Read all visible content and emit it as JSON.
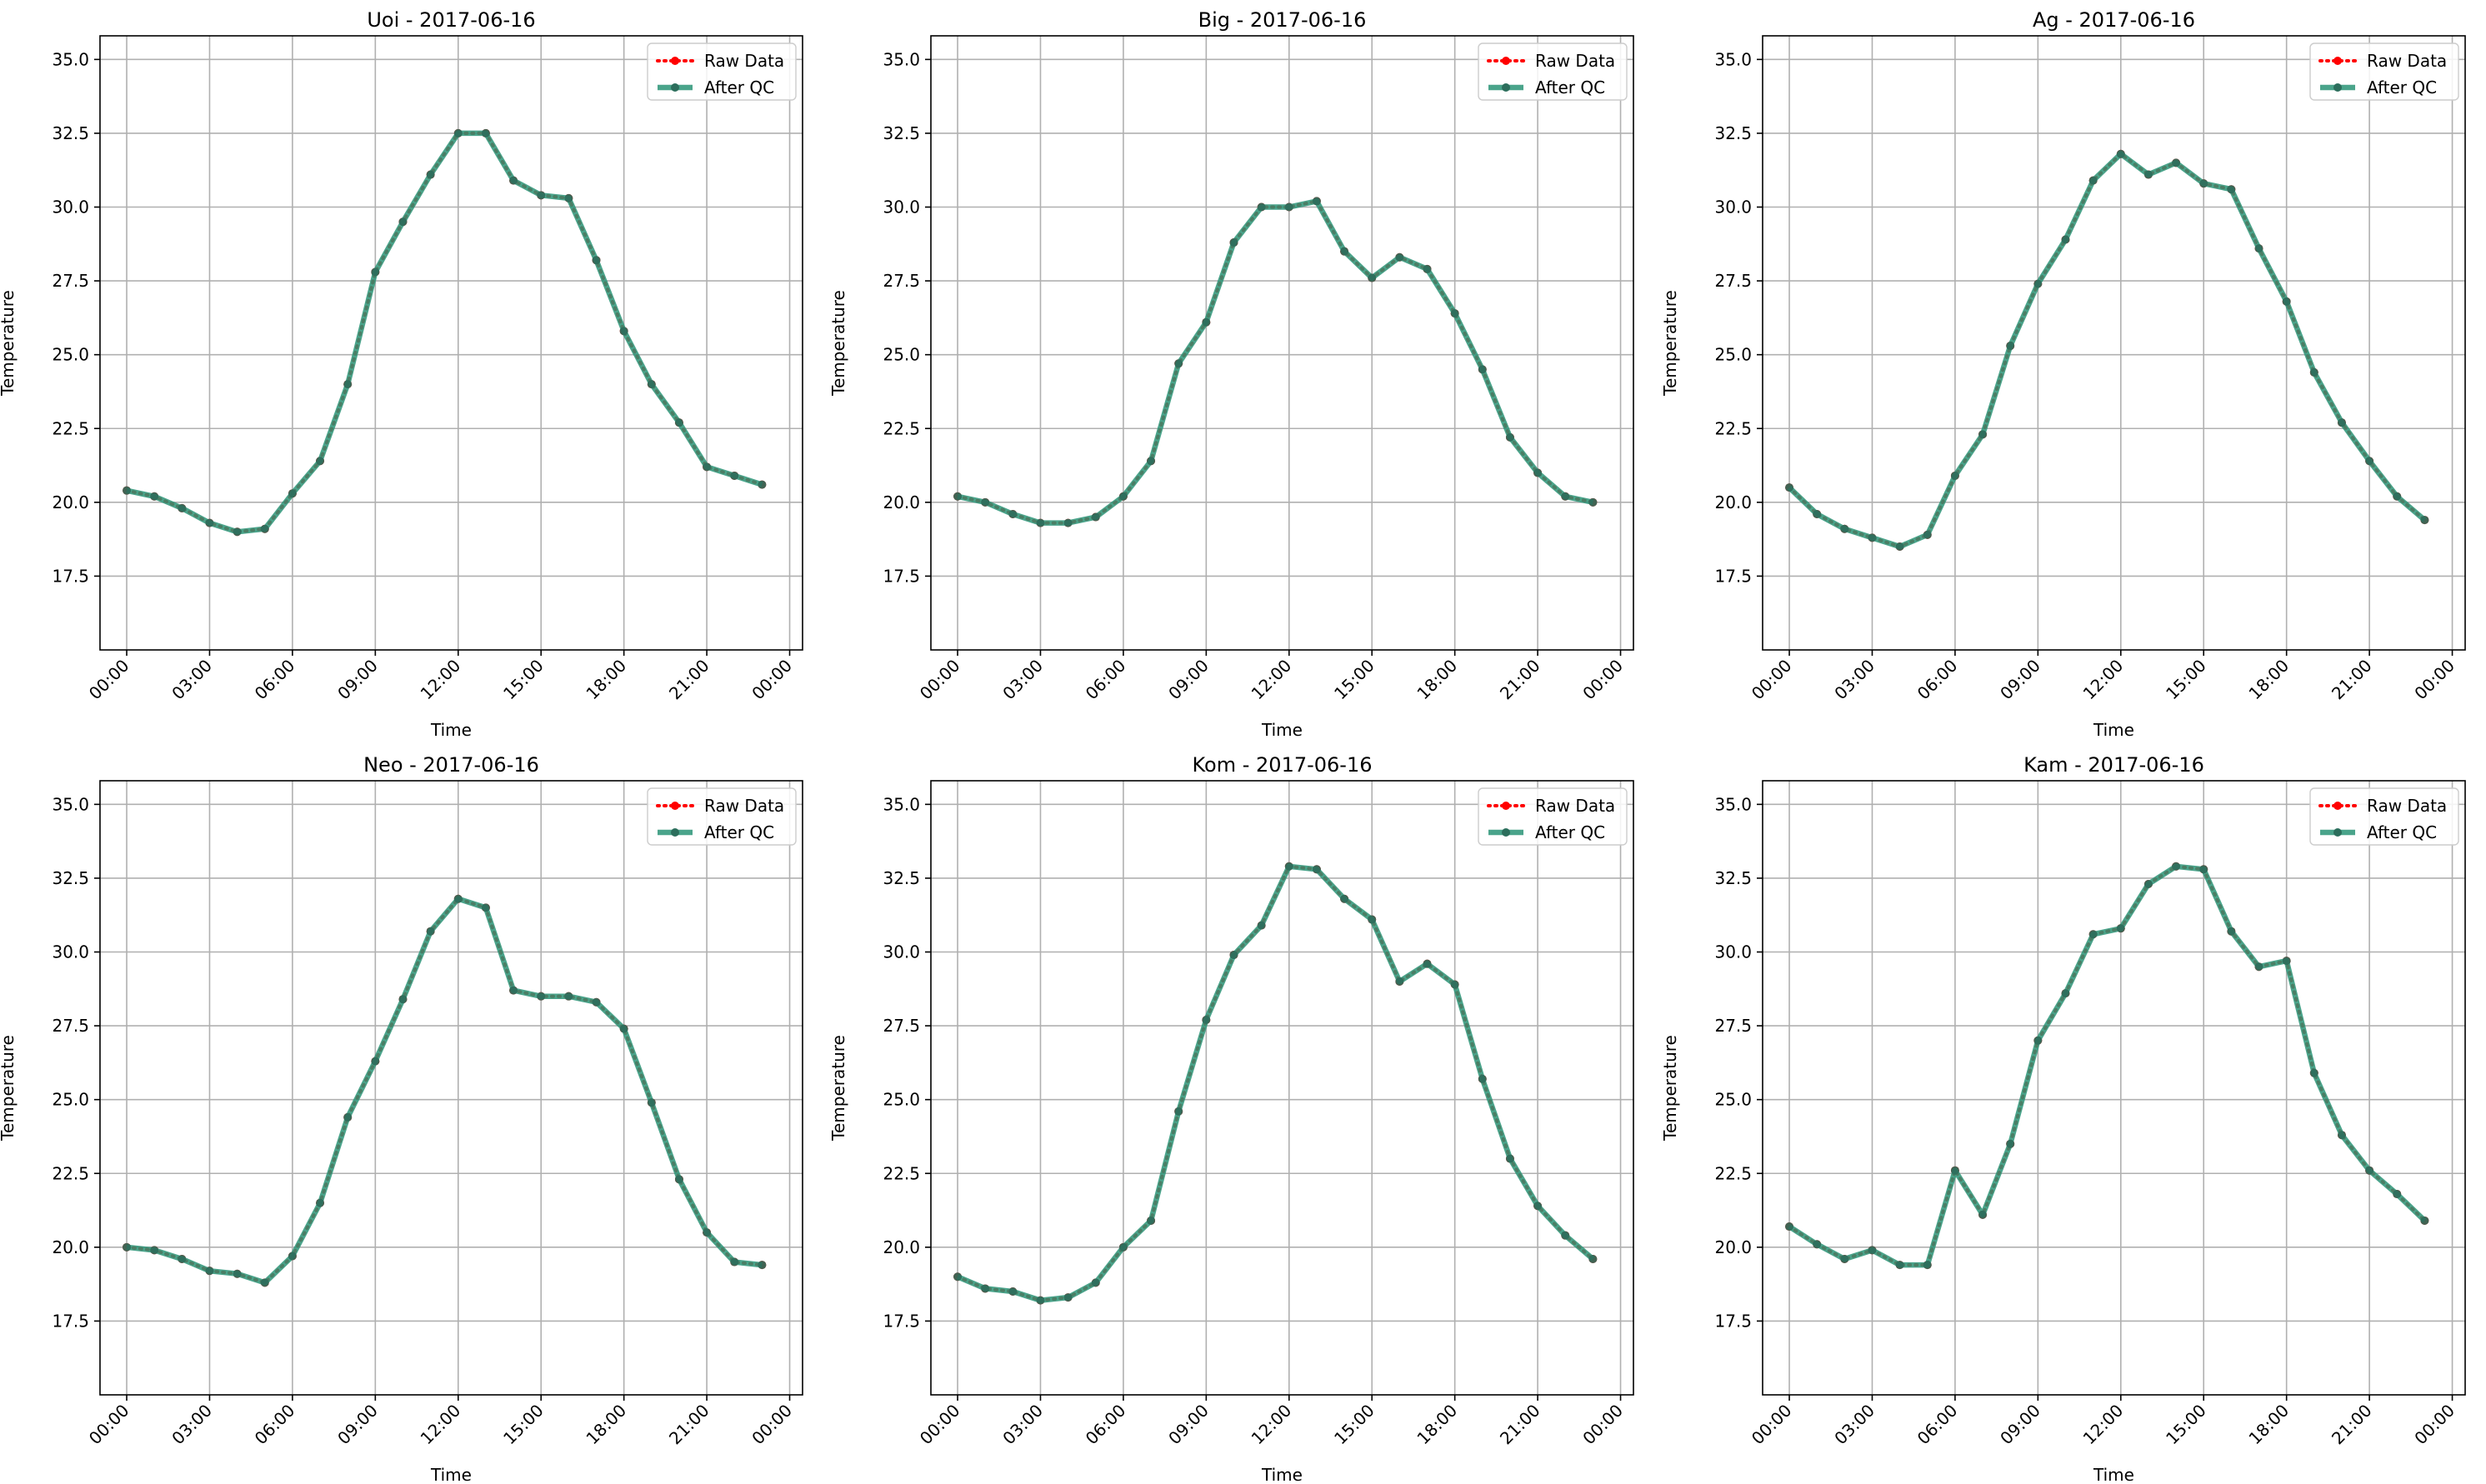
{
  "chart_data": [
    {
      "type": "line",
      "title": "Uoi - 2017-06-16",
      "xlabel": "Time",
      "ylabel": "Temperature",
      "ylim": [
        15.0,
        35.8
      ],
      "xlim": [
        "-00:58",
        "24:28"
      ],
      "grid": true,
      "legend_position": "top-right",
      "x": [
        "00:00",
        "01:00",
        "02:00",
        "03:00",
        "04:00",
        "05:00",
        "06:00",
        "07:00",
        "08:00",
        "09:00",
        "10:00",
        "11:00",
        "12:00",
        "13:00",
        "14:00",
        "15:00",
        "16:00",
        "17:00",
        "18:00",
        "19:00",
        "20:00",
        "21:00",
        "22:00",
        "23:00"
      ],
      "x_ticks": [
        "00:00",
        "03:00",
        "06:00",
        "09:00",
        "12:00",
        "15:00",
        "18:00",
        "21:00",
        "00:00"
      ],
      "y_ticks": [
        "17.5",
        "20.0",
        "22.5",
        "25.0",
        "27.5",
        "30.0",
        "32.5",
        "35.0"
      ],
      "series": [
        {
          "name": "Raw Data",
          "color": "#ff0000",
          "style": "dotted",
          "marker": "circle",
          "values": [
            20.4,
            20.2,
            19.8,
            19.3,
            19.0,
            19.1,
            20.3,
            21.4,
            24.0,
            27.8,
            29.5,
            31.1,
            32.5,
            32.5,
            30.9,
            30.4,
            30.3,
            28.2,
            25.8,
            24.0,
            22.7,
            21.2,
            20.9,
            20.6
          ]
        },
        {
          "name": "After QC",
          "color": "#2a9477",
          "style": "solid",
          "marker": "circle",
          "values": [
            20.4,
            20.2,
            19.8,
            19.3,
            19.0,
            19.1,
            20.3,
            21.4,
            24.0,
            27.8,
            29.5,
            31.1,
            32.5,
            32.5,
            30.9,
            30.4,
            30.3,
            28.2,
            25.8,
            24.0,
            22.7,
            21.2,
            20.9,
            20.6
          ]
        }
      ]
    },
    {
      "type": "line",
      "title": "Big - 2017-06-16",
      "xlabel": "Time",
      "ylabel": "Temperature",
      "ylim": [
        15.0,
        35.8
      ],
      "xlim": [
        "-00:58",
        "24:28"
      ],
      "grid": true,
      "legend_position": "top-right",
      "x": [
        "00:00",
        "01:00",
        "02:00",
        "03:00",
        "04:00",
        "05:00",
        "06:00",
        "07:00",
        "08:00",
        "09:00",
        "10:00",
        "11:00",
        "12:00",
        "13:00",
        "14:00",
        "15:00",
        "16:00",
        "17:00",
        "18:00",
        "19:00",
        "20:00",
        "21:00",
        "22:00",
        "23:00"
      ],
      "x_ticks": [
        "00:00",
        "03:00",
        "06:00",
        "09:00",
        "12:00",
        "15:00",
        "18:00",
        "21:00",
        "00:00"
      ],
      "y_ticks": [
        "17.5",
        "20.0",
        "22.5",
        "25.0",
        "27.5",
        "30.0",
        "32.5",
        "35.0"
      ],
      "series": [
        {
          "name": "Raw Data",
          "color": "#ff0000",
          "style": "dotted",
          "marker": "circle",
          "values": [
            20.2,
            20.0,
            19.6,
            19.3,
            19.3,
            19.5,
            20.2,
            21.4,
            24.7,
            26.1,
            28.8,
            30.0,
            30.0,
            30.2,
            28.5,
            27.6,
            28.3,
            27.9,
            26.4,
            24.5,
            22.2,
            21.0,
            20.2,
            20.0
          ]
        },
        {
          "name": "After QC",
          "color": "#2a9477",
          "style": "solid",
          "marker": "circle",
          "values": [
            20.2,
            20.0,
            19.6,
            19.3,
            19.3,
            19.5,
            20.2,
            21.4,
            24.7,
            26.1,
            28.8,
            30.0,
            30.0,
            30.2,
            28.5,
            27.6,
            28.3,
            27.9,
            26.4,
            24.5,
            22.2,
            21.0,
            20.2,
            20.0
          ]
        }
      ]
    },
    {
      "type": "line",
      "title": "Ag - 2017-06-16",
      "xlabel": "Time",
      "ylabel": "Temperature",
      "ylim": [
        15.0,
        35.8
      ],
      "xlim": [
        "-00:58",
        "24:28"
      ],
      "grid": true,
      "legend_position": "top-right",
      "x": [
        "00:00",
        "01:00",
        "02:00",
        "03:00",
        "04:00",
        "05:00",
        "06:00",
        "07:00",
        "08:00",
        "09:00",
        "10:00",
        "11:00",
        "12:00",
        "13:00",
        "14:00",
        "15:00",
        "16:00",
        "17:00",
        "18:00",
        "19:00",
        "20:00",
        "21:00",
        "22:00",
        "23:00"
      ],
      "x_ticks": [
        "00:00",
        "03:00",
        "06:00",
        "09:00",
        "12:00",
        "15:00",
        "18:00",
        "21:00",
        "00:00"
      ],
      "y_ticks": [
        "17.5",
        "20.0",
        "22.5",
        "25.0",
        "27.5",
        "30.0",
        "32.5",
        "35.0"
      ],
      "series": [
        {
          "name": "Raw Data",
          "color": "#ff0000",
          "style": "dotted",
          "marker": "circle",
          "values": [
            20.5,
            19.6,
            19.1,
            18.8,
            18.5,
            18.9,
            20.9,
            22.3,
            25.3,
            27.4,
            28.9,
            30.9,
            31.8,
            31.1,
            31.5,
            30.8,
            30.6,
            28.6,
            26.8,
            24.4,
            22.7,
            21.4,
            20.2,
            19.4
          ]
        },
        {
          "name": "After QC",
          "color": "#2a9477",
          "style": "solid",
          "marker": "circle",
          "values": [
            20.5,
            19.6,
            19.1,
            18.8,
            18.5,
            18.9,
            20.9,
            22.3,
            25.3,
            27.4,
            28.9,
            30.9,
            31.8,
            31.1,
            31.5,
            30.8,
            30.6,
            28.6,
            26.8,
            24.4,
            22.7,
            21.4,
            20.2,
            19.4
          ]
        }
      ]
    },
    {
      "type": "line",
      "title": "Neo - 2017-06-16",
      "xlabel": "Time",
      "ylabel": "Temperature",
      "ylim": [
        15.0,
        35.8
      ],
      "xlim": [
        "-00:58",
        "24:28"
      ],
      "grid": true,
      "legend_position": "top-right",
      "x": [
        "00:00",
        "01:00",
        "02:00",
        "03:00",
        "04:00",
        "05:00",
        "06:00",
        "07:00",
        "08:00",
        "09:00",
        "10:00",
        "11:00",
        "12:00",
        "13:00",
        "14:00",
        "15:00",
        "16:00",
        "17:00",
        "18:00",
        "19:00",
        "20:00",
        "21:00",
        "22:00",
        "23:00"
      ],
      "x_ticks": [
        "00:00",
        "03:00",
        "06:00",
        "09:00",
        "12:00",
        "15:00",
        "18:00",
        "21:00",
        "00:00"
      ],
      "y_ticks": [
        "17.5",
        "20.0",
        "22.5",
        "25.0",
        "27.5",
        "30.0",
        "32.5",
        "35.0"
      ],
      "series": [
        {
          "name": "Raw Data",
          "color": "#ff0000",
          "style": "dotted",
          "marker": "circle",
          "values": [
            20.0,
            19.9,
            19.6,
            19.2,
            19.1,
            18.8,
            19.7,
            21.5,
            24.4,
            26.3,
            28.4,
            30.7,
            31.8,
            31.5,
            28.7,
            28.5,
            28.5,
            28.3,
            27.4,
            24.9,
            22.3,
            20.5,
            19.5,
            19.4
          ]
        },
        {
          "name": "After QC",
          "color": "#2a9477",
          "style": "solid",
          "marker": "circle",
          "values": [
            20.0,
            19.9,
            19.6,
            19.2,
            19.1,
            18.8,
            19.7,
            21.5,
            24.4,
            26.3,
            28.4,
            30.7,
            31.8,
            31.5,
            28.7,
            28.5,
            28.5,
            28.3,
            27.4,
            24.9,
            22.3,
            20.5,
            19.5,
            19.4
          ]
        }
      ]
    },
    {
      "type": "line",
      "title": "Kom - 2017-06-16",
      "xlabel": "Time",
      "ylabel": "Temperature",
      "ylim": [
        15.0,
        35.8
      ],
      "xlim": [
        "-00:58",
        "24:28"
      ],
      "grid": true,
      "legend_position": "top-right",
      "x": [
        "00:00",
        "01:00",
        "02:00",
        "03:00",
        "04:00",
        "05:00",
        "06:00",
        "07:00",
        "08:00",
        "09:00",
        "10:00",
        "11:00",
        "12:00",
        "13:00",
        "14:00",
        "15:00",
        "16:00",
        "17:00",
        "18:00",
        "19:00",
        "20:00",
        "21:00",
        "22:00",
        "23:00"
      ],
      "x_ticks": [
        "00:00",
        "03:00",
        "06:00",
        "09:00",
        "12:00",
        "15:00",
        "18:00",
        "21:00",
        "00:00"
      ],
      "y_ticks": [
        "17.5",
        "20.0",
        "22.5",
        "25.0",
        "27.5",
        "30.0",
        "32.5",
        "35.0"
      ],
      "series": [
        {
          "name": "Raw Data",
          "color": "#ff0000",
          "style": "dotted",
          "marker": "circle",
          "values": [
            19.0,
            18.6,
            18.5,
            18.2,
            18.3,
            18.8,
            20.0,
            20.9,
            24.6,
            27.7,
            29.9,
            30.9,
            32.9,
            32.8,
            31.8,
            31.1,
            29.0,
            29.6,
            28.9,
            25.7,
            23.0,
            21.4,
            20.4,
            19.6
          ]
        },
        {
          "name": "After QC",
          "color": "#2a9477",
          "style": "solid",
          "marker": "circle",
          "values": [
            19.0,
            18.6,
            18.5,
            18.2,
            18.3,
            18.8,
            20.0,
            20.9,
            24.6,
            27.7,
            29.9,
            30.9,
            32.9,
            32.8,
            31.8,
            31.1,
            29.0,
            29.6,
            28.9,
            25.7,
            23.0,
            21.4,
            20.4,
            19.6
          ]
        }
      ]
    },
    {
      "type": "line",
      "title": "Kam - 2017-06-16",
      "xlabel": "Time",
      "ylabel": "Temperature",
      "ylim": [
        15.0,
        35.8
      ],
      "xlim": [
        "-00:58",
        "24:28"
      ],
      "grid": true,
      "legend_position": "top-right",
      "x": [
        "00:00",
        "01:00",
        "02:00",
        "03:00",
        "04:00",
        "05:00",
        "06:00",
        "07:00",
        "08:00",
        "09:00",
        "10:00",
        "11:00",
        "12:00",
        "13:00",
        "14:00",
        "15:00",
        "16:00",
        "17:00",
        "18:00",
        "19:00",
        "20:00",
        "21:00",
        "22:00",
        "23:00"
      ],
      "x_ticks": [
        "00:00",
        "03:00",
        "06:00",
        "09:00",
        "12:00",
        "15:00",
        "18:00",
        "21:00",
        "00:00"
      ],
      "y_ticks": [
        "17.5",
        "20.0",
        "22.5",
        "25.0",
        "27.5",
        "30.0",
        "32.5",
        "35.0"
      ],
      "series": [
        {
          "name": "Raw Data",
          "color": "#ff0000",
          "style": "dotted",
          "marker": "circle",
          "values": [
            20.7,
            20.1,
            19.6,
            19.9,
            19.4,
            19.4,
            22.6,
            21.1,
            23.5,
            27.0,
            28.6,
            30.6,
            30.8,
            32.3,
            32.9,
            32.8,
            30.7,
            29.5,
            29.7,
            25.9,
            23.8,
            22.6,
            21.8,
            20.9
          ]
        },
        {
          "name": "After QC",
          "color": "#2a9477",
          "style": "solid",
          "marker": "circle",
          "values": [
            20.7,
            20.1,
            19.6,
            19.9,
            19.4,
            19.4,
            22.6,
            21.1,
            23.5,
            27.0,
            28.6,
            30.6,
            30.8,
            32.3,
            32.9,
            32.8,
            30.7,
            29.5,
            29.7,
            25.9,
            23.8,
            22.6,
            21.8,
            20.9
          ]
        }
      ]
    }
  ]
}
